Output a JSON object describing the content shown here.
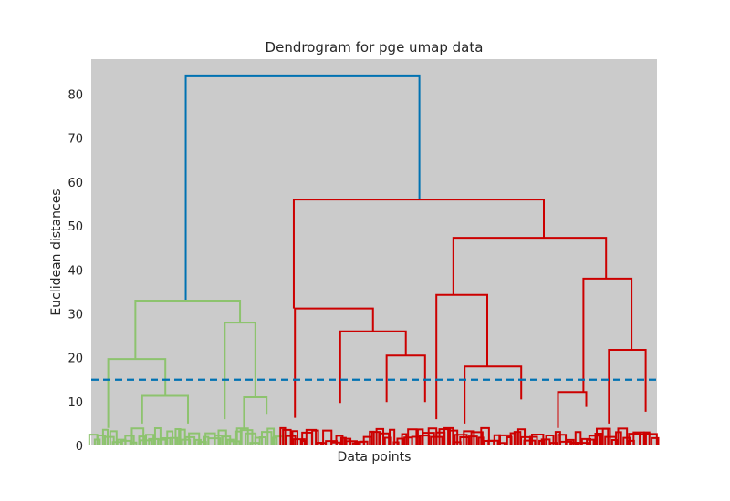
{
  "chart_data": {
    "type": "dendrogram",
    "title": "Dendrogram for pge umap data",
    "xlabel": "Data points",
    "ylabel": "Euclidean distances",
    "ylim": [
      0,
      88
    ],
    "yticks": [
      "0",
      "10",
      "20",
      "30",
      "40",
      "50",
      "60",
      "70",
      "80"
    ],
    "threshold": 15,
    "grid": false,
    "colors": {
      "background": "#cbcbcb",
      "root": "#0072b2",
      "cluster_green": "#8dc36e",
      "cluster_red": "#cc0000",
      "threshold_line": "#0072b2"
    },
    "merges": [
      {
        "left": [
          0.167,
          33
        ],
        "right": [
          0.58,
          56
        ],
        "height": 84.3,
        "color": "root"
      },
      {
        "left": [
          0.078,
          19.7
        ],
        "right": [
          0.263,
          28
        ],
        "height": 33,
        "color": "cluster_green"
      },
      {
        "left": [
          0.358,
          31.2
        ],
        "right": [
          0.8,
          47.3
        ],
        "height": 56,
        "color": "cluster_red"
      },
      {
        "left": [
          0.64,
          34.3
        ],
        "right": [
          0.91,
          38
        ],
        "height": 47.3,
        "color": "cluster_red"
      },
      {
        "left": [
          0.03,
          4
        ],
        "right": [
          0.131,
          11.3
        ],
        "height": 19.7,
        "color": "cluster_green"
      },
      {
        "left": [
          0.09,
          5
        ],
        "right": [
          0.171,
          5
        ],
        "height": 11.3,
        "color": "cluster_green"
      },
      {
        "left": [
          0.236,
          6
        ],
        "right": [
          0.29,
          11
        ],
        "height": 28,
        "color": "cluster_green"
      },
      {
        "left": [
          0.27,
          4
        ],
        "right": [
          0.31,
          7
        ],
        "height": 11,
        "color": "cluster_green"
      },
      {
        "left": [
          0.36,
          6.3
        ],
        "right": [
          0.498,
          26
        ],
        "height": 31.2,
        "color": "cluster_red"
      },
      {
        "left": [
          0.44,
          9.7
        ],
        "right": [
          0.556,
          20.5
        ],
        "height": 26,
        "color": "cluster_red"
      },
      {
        "left": [
          0.522,
          9.9
        ],
        "right": [
          0.59,
          9.9
        ],
        "height": 20.5,
        "color": "cluster_red"
      },
      {
        "left": [
          0.61,
          6
        ],
        "right": [
          0.7,
          18
        ],
        "height": 34.3,
        "color": "cluster_red"
      },
      {
        "left": [
          0.66,
          5
        ],
        "right": [
          0.76,
          10.5
        ],
        "height": 18,
        "color": "cluster_red"
      },
      {
        "left": [
          0.87,
          12.2
        ],
        "right": [
          0.955,
          21.8
        ],
        "height": 38,
        "color": "cluster_red"
      },
      {
        "left": [
          0.825,
          4
        ],
        "right": [
          0.875,
          8.8
        ],
        "height": 12.2,
        "color": "cluster_red"
      },
      {
        "left": [
          0.915,
          5
        ],
        "right": [
          0.98,
          7.7
        ],
        "height": 21.8,
        "color": "cluster_red"
      }
    ],
    "leaf_clusters": [
      {
        "range": [
          0.0,
          0.335
        ],
        "color": "cluster_green"
      },
      {
        "range": [
          0.335,
          1.0
        ],
        "color": "cluster_red"
      }
    ]
  }
}
